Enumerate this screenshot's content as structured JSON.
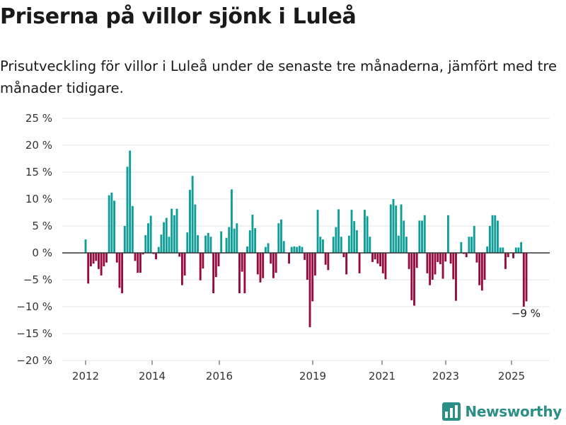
{
  "page": {
    "title": "Priserna på villor sjönk i Luleå",
    "subtitle": "Prisutveckling för villor i Luleå under de senaste tre månaderna, jämfört med tre månader tidigare.",
    "brand": "Newsworthy"
  },
  "colors": {
    "positive": "#0f9e97",
    "negative": "#970a3f",
    "brand": "#2b8f85",
    "grid": "#e3e3e3",
    "zero_line": "#333333"
  },
  "chart_data": {
    "type": "bar",
    "title": "",
    "xlabel": "",
    "ylabel": "",
    "ylim": [
      -20,
      25
    ],
    "yticks": [
      25,
      20,
      15,
      10,
      5,
      0,
      -5,
      -10,
      -15,
      -20
    ],
    "ytick_labels": [
      "25 %",
      "20 %",
      "15 %",
      "10 %",
      "5 %",
      "0 %",
      "−5 %",
      "−10 %",
      "−15 %",
      "−20 %"
    ],
    "xticks": [
      "2012",
      "2014",
      "2016",
      "2019",
      "2021",
      "2023",
      "2025"
    ],
    "grid": true,
    "legend": "none",
    "annotation": {
      "text": "−9 %",
      "target": "last"
    },
    "values": [
      2.5,
      -5.7,
      -2.5,
      -2,
      -1.5,
      -3,
      -4.2,
      -2.5,
      -1.8,
      10.7,
      11.2,
      9.7,
      -1.8,
      -6.5,
      -7.5,
      5,
      16,
      19,
      8.7,
      -1.5,
      -3.7,
      -3.7,
      -0.3,
      3.3,
      5.5,
      6.9,
      -0.2,
      -1.2,
      1.1,
      3.4,
      5.7,
      6.5,
      3,
      8.2,
      7,
      8.2,
      -0.7,
      -6,
      -4.2,
      3.8,
      11.7,
      14.3,
      9,
      3.3,
      -5.1,
      -2.9,
      3.2,
      3.7,
      3,
      -7.5,
      -4.5,
      -2.5,
      4,
      0.1,
      2.8,
      4.8,
      11.8,
      4.5,
      5.5,
      -7.5,
      -3.5,
      -7.5,
      1.2,
      4.2,
      7.1,
      4.6,
      -4,
      -5.5,
      -4.7,
      1.1,
      1.8,
      -2,
      -4.7,
      -3.7,
      5.5,
      6.2,
      2.2,
      0,
      -2,
      1.1,
      1.2,
      1.1,
      1.3,
      1.1,
      -1.3,
      -5,
      -13.8,
      -9,
      -4.2,
      8,
      3,
      2.5,
      -2.2,
      -3.2,
      0,
      3,
      4.8,
      8.1,
      3,
      -0.8,
      -4,
      3.2,
      8,
      5.9,
      4.2,
      -3.8,
      0,
      8,
      6.8,
      3,
      -1.7,
      -1.2,
      -2,
      -2.5,
      -3.8,
      -4.9,
      -0.1,
      9,
      10,
      8.8,
      3.2,
      9,
      6,
      3,
      -3,
      -8.8,
      -9.8,
      -2.8,
      6,
      6,
      7,
      -3.8,
      -6,
      -5,
      -4,
      -1.7,
      -2.1,
      -4.8,
      -1.6,
      7,
      -2,
      -4.9,
      -8.9,
      -0.1,
      2,
      -0.2,
      -0.8,
      3,
      3,
      5,
      -1.8,
      -6,
      -7,
      -5,
      1.2,
      5,
      7,
      7,
      6,
      1,
      1,
      -3,
      -0.8,
      0.1,
      -1,
      1,
      1,
      2,
      -10,
      -9
    ]
  }
}
